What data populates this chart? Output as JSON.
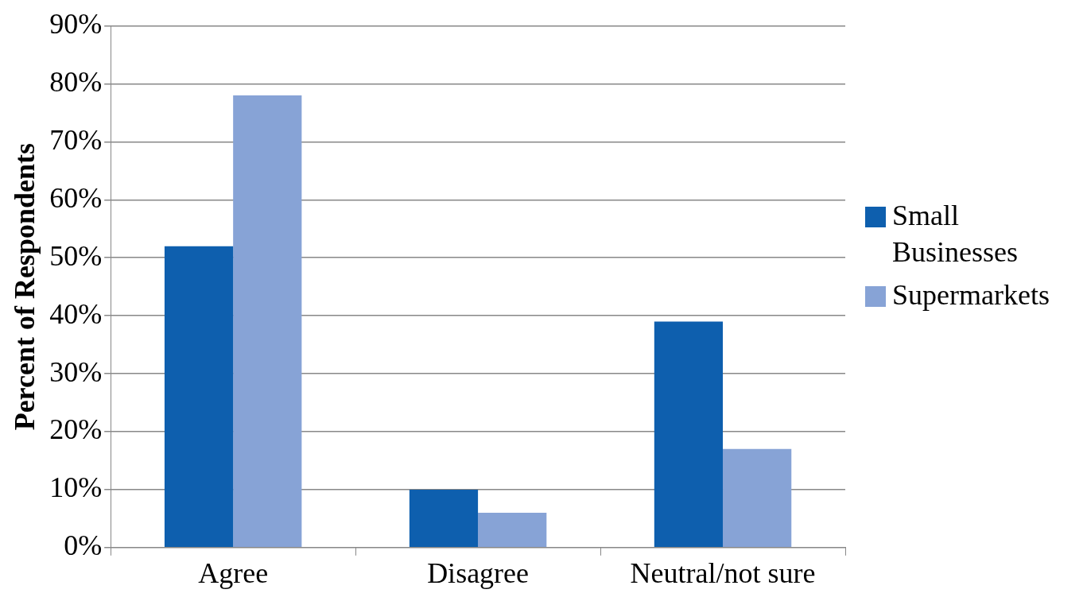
{
  "chart_data": {
    "type": "bar",
    "ylabel": "Percent of Respondents",
    "categories": [
      "Agree",
      "Disagree",
      "Neutral/not sure"
    ],
    "series": [
      {
        "name": "Small Businesses",
        "color": "#0e5fae",
        "values": [
          52,
          10,
          39
        ]
      },
      {
        "name": "Supermarkets",
        "color": "#87a3d6",
        "values": [
          78,
          6,
          17
        ]
      }
    ],
    "ylim": [
      0,
      90
    ],
    "yticks": [
      {
        "value": 0,
        "label": "0%"
      },
      {
        "value": 10,
        "label": "10%"
      },
      {
        "value": 20,
        "label": "20%"
      },
      {
        "value": 30,
        "label": "30%"
      },
      {
        "value": 40,
        "label": "40%"
      },
      {
        "value": 50,
        "label": "50%"
      },
      {
        "value": 60,
        "label": "60%"
      },
      {
        "value": 70,
        "label": "70%"
      },
      {
        "value": 80,
        "label": "80%"
      },
      {
        "value": 90,
        "label": "90%"
      }
    ],
    "grid": "y",
    "legend": "right"
  }
}
